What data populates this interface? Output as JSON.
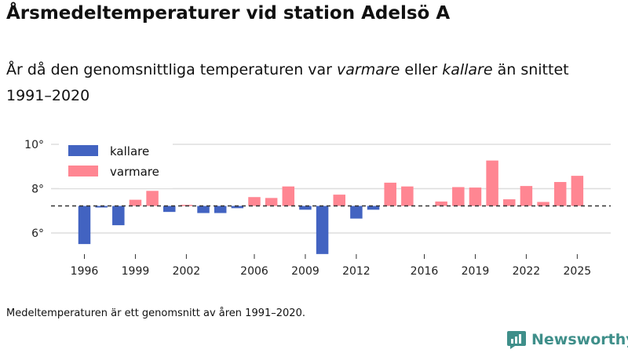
{
  "title": "Årsmedeltemperaturer vid station Adelsö A",
  "subtitle": {
    "part1": "År då den genomsnittliga temperaturen var ",
    "warm": "varmare",
    "part2": " eller ",
    "cold": "kallare",
    "part3": " än snittet 1991–2020"
  },
  "footnote": "Medeltemperaturen är ett genomsnitt av åren 1991–2020.",
  "brand": "Newsworthy",
  "colors": {
    "colder": "#4263c1",
    "warmer": "#ff8692",
    "grid": "#dddddd",
    "baseline": "#333333",
    "brand": "#3f8f8a"
  },
  "chart_data": {
    "type": "bar",
    "title": "Årsmedeltemperaturer vid station Adelsö A",
    "xlabel": "",
    "ylabel": "",
    "baseline": 7.22,
    "ylim": [
      5.0,
      10.0
    ],
    "y_ticks": [
      6,
      8,
      10
    ],
    "y_tick_labels": [
      "6°",
      "8°",
      "10°"
    ],
    "x_ticks": [
      1996,
      1999,
      2002,
      2006,
      2009,
      2012,
      2016,
      2019,
      2022,
      2025
    ],
    "legend": [
      {
        "name": "kallare",
        "color": "#4263c1"
      },
      {
        "name": "varmare",
        "color": "#ff8692"
      }
    ],
    "legend_position": "top-left",
    "years": [
      1996,
      1997,
      1998,
      1999,
      2000,
      2001,
      2002,
      2003,
      2004,
      2005,
      2006,
      2007,
      2008,
      2009,
      2010,
      2011,
      2012,
      2013,
      2014,
      2015,
      2016,
      2017,
      2018,
      2019,
      2020,
      2021,
      2022,
      2023,
      2024,
      2025
    ],
    "values": [
      5.5,
      7.15,
      6.35,
      7.5,
      7.9,
      6.95,
      7.27,
      6.9,
      6.9,
      7.12,
      7.62,
      7.58,
      8.1,
      7.05,
      5.05,
      7.73,
      6.65,
      7.05,
      8.27,
      8.1,
      null,
      7.42,
      8.07,
      8.05,
      9.27,
      7.52,
      8.12,
      7.4,
      8.3,
      8.58
    ]
  }
}
